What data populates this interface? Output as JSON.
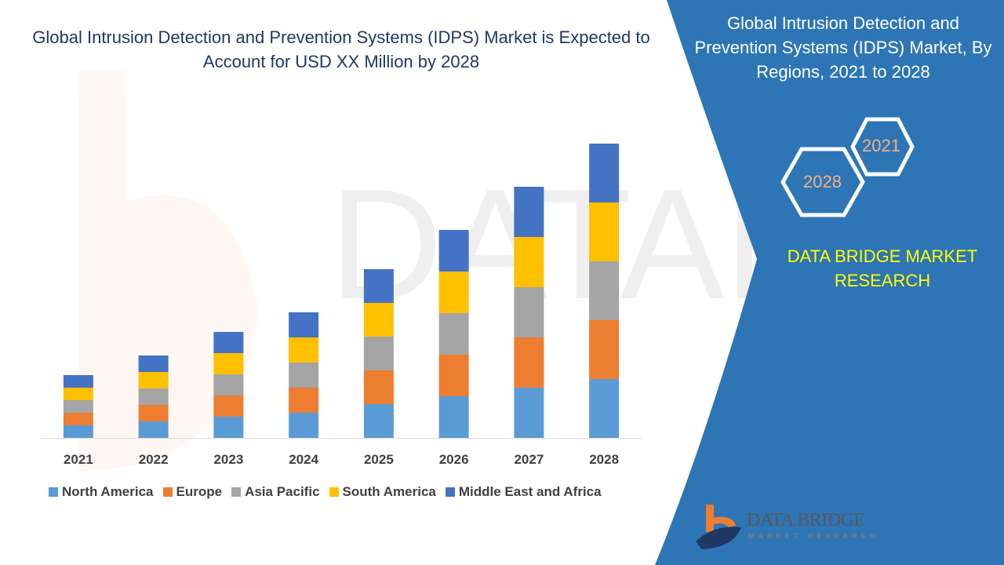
{
  "title": "Global Intrusion Detection and Prevention Systems (IDPS) Market is Expected to Account for USD XX Million by 2028",
  "side_panel": {
    "title": "Global Intrusion Detection and Prevention Systems (IDPS) Market, By Regions, 2021 to 2028",
    "hex_start": "2021",
    "hex_end": "2028",
    "brand": "DATA BRIDGE MARKET RESEARCH",
    "logo_text": "DATA BRIDGE",
    "logo_sub": "MARKET RESEARCH",
    "color": "#2e75b6",
    "brand_color": "#ffff00"
  },
  "chart_data": {
    "type": "bar",
    "stacked": true,
    "title": "",
    "xlabel": "",
    "ylabel": "",
    "ylim": [
      0,
      400
    ],
    "grid": false,
    "legend_position": "bottom",
    "categories": [
      "2021",
      "2022",
      "2023",
      "2024",
      "2025",
      "2026",
      "2027",
      "2028"
    ],
    "series": [
      {
        "name": "North America",
        "color": "#5b9bd5",
        "values": [
          16,
          21,
          27,
          32,
          43,
          53,
          64,
          75
        ]
      },
      {
        "name": "Europe",
        "color": "#ed7d31",
        "values": [
          16,
          21,
          27,
          32,
          43,
          53,
          64,
          75
        ]
      },
      {
        "name": "Asia Pacific",
        "color": "#a5a5a5",
        "values": [
          16,
          21,
          27,
          32,
          43,
          53,
          64,
          75
        ]
      },
      {
        "name": "South America",
        "color": "#ffc000",
        "values": [
          16,
          21,
          27,
          32,
          43,
          53,
          64,
          75
        ]
      },
      {
        "name": "Middle East and Africa",
        "color": "#4472c4",
        "values": [
          16,
          21,
          27,
          32,
          43,
          53,
          64,
          75
        ]
      }
    ]
  }
}
